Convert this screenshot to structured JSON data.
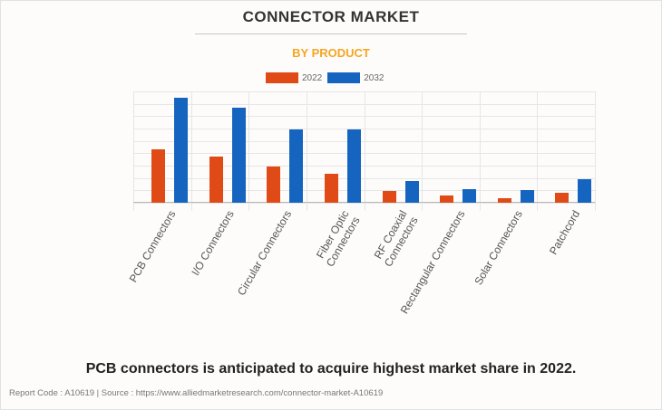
{
  "header": {
    "title": "CONNECTOR MARKET",
    "subtitle": "BY PRODUCT"
  },
  "legend": [
    {
      "label": "2022",
      "color": "#e04a16"
    },
    {
      "label": "2032",
      "color": "#1565c0"
    }
  ],
  "footer": {
    "caption": "PCB connectors is anticipated to acquire highest market share in 2022.",
    "source": "Report Code : A10619  |  Source : https://www.alliedmarketresearch.com/connector-market-A10619"
  },
  "chart_data": {
    "type": "bar",
    "title": "CONNECTOR MARKET",
    "subtitle": "BY PRODUCT",
    "xlabel": "",
    "ylabel": "",
    "ylim": [
      0,
      9
    ],
    "grid": true,
    "legend_position": "top",
    "y_tick_labels_visible": false,
    "categories": [
      "PCB Connectors",
      "I/O Connectors",
      "Circular Connectors",
      "Fiber Optic Connectors",
      "RF Coaxial Connectors",
      "Rectangular Connectors",
      "Solar Connectors",
      "Patchcord"
    ],
    "category_labels_display": [
      [
        "PCB Connectors"
      ],
      [
        "I/O Connectors"
      ],
      [
        "Circular Connectors"
      ],
      [
        "Fiber Optic",
        "Connectors"
      ],
      [
        "RF Coaxial",
        "Connectors"
      ],
      [
        "Rectangular Connectors"
      ],
      [
        "Solar Connectors"
      ],
      [
        "Patchcord"
      ]
    ],
    "series": [
      {
        "name": "2022",
        "color": "#e04a16",
        "values": [
          4.3,
          3.75,
          2.9,
          2.35,
          0.95,
          0.6,
          0.37,
          0.8
        ]
      },
      {
        "name": "2032",
        "color": "#1565c0",
        "values": [
          8.5,
          7.7,
          5.9,
          5.95,
          1.75,
          1.1,
          1.0,
          1.9
        ]
      }
    ],
    "note": "Values are relative units estimated from gridlines (no y-axis labels shown)."
  }
}
